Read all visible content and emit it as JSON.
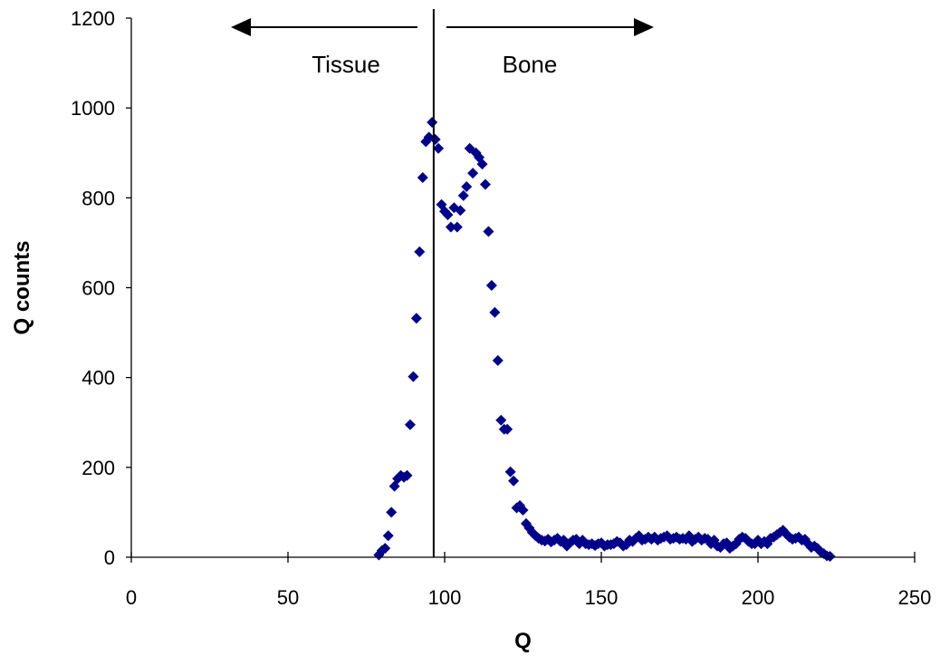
{
  "chart_data": {
    "type": "scatter",
    "title": "",
    "xlabel": "Q",
    "ylabel": "Q counts",
    "xlim": [
      0,
      250
    ],
    "ylim": [
      0,
      1200
    ],
    "xticks": [
      0,
      50,
      100,
      150,
      200,
      250
    ],
    "yticks": [
      0,
      200,
      400,
      600,
      800,
      1000,
      1200
    ],
    "grid": false,
    "legend": "none",
    "marker": "diamond",
    "marker_color": "#00008B",
    "divider": {
      "x": 96.5
    },
    "annotations": {
      "left": {
        "text": "Tissue",
        "arrow": "left"
      },
      "right": {
        "text": "Bone",
        "arrow": "right"
      }
    },
    "series": [
      {
        "x": [
          79,
          80,
          81,
          82,
          83,
          84,
          85,
          86,
          87,
          88,
          89,
          90,
          91,
          92,
          93,
          94,
          95,
          96,
          97,
          98,
          99,
          100,
          101,
          102,
          103,
          104,
          105,
          106,
          107,
          108,
          109,
          110,
          111,
          112,
          113,
          114,
          115,
          116,
          117,
          118,
          119,
          120,
          121,
          122,
          123,
          124,
          125,
          126,
          127,
          128,
          129,
          130,
          131,
          132,
          133,
          134,
          135,
          136,
          137,
          138,
          139,
          140,
          141,
          142,
          143,
          144,
          145,
          146,
          147,
          148,
          149,
          150,
          151,
          152,
          153,
          154,
          155,
          156,
          157,
          158,
          159,
          160,
          161,
          162,
          163,
          164,
          165,
          166,
          167,
          168,
          169,
          170,
          171,
          172,
          173,
          174,
          175,
          176,
          177,
          178,
          179,
          180,
          181,
          182,
          183,
          184,
          185,
          186,
          187,
          188,
          189,
          190,
          191,
          192,
          193,
          194,
          195,
          196,
          197,
          198,
          199,
          200,
          201,
          202,
          203,
          204,
          205,
          206,
          207,
          208,
          209,
          210,
          211,
          212,
          213,
          214,
          215,
          216,
          217,
          218,
          219,
          220,
          221,
          222,
          223
        ],
        "y": [
          5,
          15,
          20,
          48,
          100,
          158,
          175,
          182,
          178,
          182,
          295,
          402,
          532,
          680,
          845,
          925,
          935,
          968,
          930,
          910,
          785,
          770,
          762,
          735,
          778,
          735,
          772,
          805,
          825,
          910,
          855,
          900,
          890,
          875,
          830,
          725,
          605,
          545,
          438,
          305,
          285,
          285,
          190,
          170,
          110,
          115,
          105,
          75,
          65,
          55,
          48,
          42,
          38,
          36,
          40,
          34,
          38,
          42,
          35,
          38,
          25,
          32,
          38,
          40,
          30,
          38,
          30,
          28,
          30,
          26,
          30,
          32,
          25,
          28,
          28,
          30,
          35,
          32,
          25,
          28,
          38,
          35,
          42,
          48,
          38,
          40,
          45,
          40,
          45,
          38,
          42,
          45,
          48,
          40,
          42,
          45,
          40,
          42,
          40,
          48,
          35,
          40,
          45,
          38,
          42,
          40,
          30,
          38,
          25,
          22,
          30,
          32,
          20,
          25,
          30,
          40,
          45,
          42,
          35,
          30,
          30,
          38,
          30,
          35,
          30,
          42,
          45,
          50,
          55,
          60,
          52,
          45,
          40,
          42,
          45,
          38,
          40,
          30,
          22,
          25,
          20,
          12,
          8,
          3,
          2
        ]
      }
    ]
  }
}
